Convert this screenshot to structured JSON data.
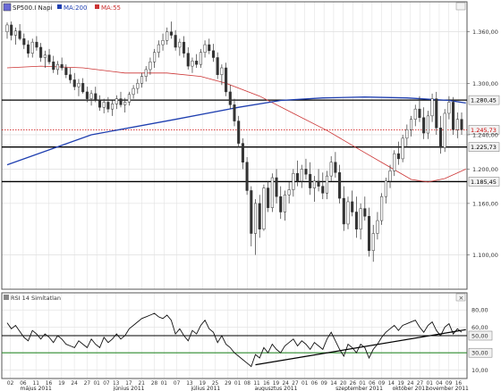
{
  "chart_data": {
    "type": "candlestick",
    "legend": [
      {
        "label": "SP500.I Napi",
        "color": "#222222"
      },
      {
        "label": "MA:200",
        "color": "#1f3fb0"
      },
      {
        "label": "MA:55",
        "color": "#cc3333"
      }
    ],
    "price_axis": {
      "min": 1060,
      "max": 1395,
      "ticks": [
        {
          "value": 1360,
          "label": "1.360,00"
        },
        {
          "value": 1300,
          "label": "1.300,00"
        },
        {
          "value": 1240,
          "label": "1.240,00"
        },
        {
          "value": 1200,
          "label": "1.200,00"
        },
        {
          "value": 1160,
          "label": "1.160,00"
        },
        {
          "value": 1100,
          "label": "1.100,00"
        }
      ]
    },
    "horizontal_levels": [
      {
        "value": 1280.45,
        "label": "1.280,45",
        "style": "solid",
        "color": "#000000"
      },
      {
        "value": 1245.73,
        "label": "1.245,73",
        "style": "dotted",
        "color": "#cc0000"
      },
      {
        "value": 1225.73,
        "label": "1.225,73",
        "style": "solid",
        "color": "#000000"
      },
      {
        "value": 1185.45,
        "label": "1.185,45",
        "style": "solid",
        "color": "#000000"
      }
    ],
    "candles": [
      [
        1360,
        1371,
        1352,
        1368
      ],
      [
        1368,
        1372,
        1350,
        1356
      ],
      [
        1356,
        1365,
        1345,
        1361
      ],
      [
        1361,
        1369,
        1350,
        1352
      ],
      [
        1352,
        1358,
        1340,
        1345
      ],
      [
        1345,
        1350,
        1330,
        1335
      ],
      [
        1335,
        1352,
        1330,
        1348
      ],
      [
        1348,
        1355,
        1338,
        1342
      ],
      [
        1342,
        1347,
        1325,
        1330
      ],
      [
        1330,
        1338,
        1318,
        1333
      ],
      [
        1333,
        1340,
        1322,
        1325
      ],
      [
        1325,
        1332,
        1312,
        1316
      ],
      [
        1316,
        1326,
        1310,
        1322
      ],
      [
        1322,
        1330,
        1315,
        1318
      ],
      [
        1318,
        1322,
        1306,
        1310
      ],
      [
        1310,
        1318,
        1300,
        1304
      ],
      [
        1304,
        1312,
        1292,
        1296
      ],
      [
        1296,
        1305,
        1285,
        1300
      ],
      [
        1300,
        1306,
        1288,
        1290
      ],
      [
        1290,
        1296,
        1278,
        1282
      ],
      [
        1282,
        1292,
        1274,
        1288
      ],
      [
        1288,
        1296,
        1278,
        1280
      ],
      [
        1280,
        1286,
        1268,
        1272
      ],
      [
        1272,
        1282,
        1265,
        1278
      ],
      [
        1278,
        1284,
        1266,
        1270
      ],
      [
        1270,
        1280,
        1262,
        1276
      ],
      [
        1276,
        1286,
        1270,
        1282
      ],
      [
        1282,
        1290,
        1272,
        1275
      ],
      [
        1275,
        1283,
        1266,
        1278
      ],
      [
        1278,
        1290,
        1274,
        1287
      ],
      [
        1287,
        1298,
        1282,
        1294
      ],
      [
        1294,
        1305,
        1288,
        1300
      ],
      [
        1300,
        1312,
        1295,
        1308
      ],
      [
        1308,
        1320,
        1302,
        1316
      ],
      [
        1316,
        1330,
        1310,
        1325
      ],
      [
        1325,
        1340,
        1318,
        1336
      ],
      [
        1336,
        1350,
        1330,
        1345
      ],
      [
        1345,
        1358,
        1338,
        1350
      ],
      [
        1350,
        1365,
        1345,
        1360
      ],
      [
        1360,
        1372,
        1352,
        1356
      ],
      [
        1356,
        1362,
        1338,
        1342
      ],
      [
        1342,
        1352,
        1332,
        1348
      ],
      [
        1348,
        1355,
        1330,
        1335
      ],
      [
        1335,
        1342,
        1316,
        1320
      ],
      [
        1320,
        1330,
        1312,
        1326
      ],
      [
        1326,
        1334,
        1318,
        1322
      ],
      [
        1322,
        1340,
        1318,
        1336
      ],
      [
        1336,
        1350,
        1330,
        1345
      ],
      [
        1345,
        1352,
        1334,
        1338
      ],
      [
        1338,
        1346,
        1325,
        1330
      ],
      [
        1330,
        1336,
        1305,
        1310
      ],
      [
        1310,
        1322,
        1298,
        1318
      ],
      [
        1318,
        1324,
        1285,
        1290
      ],
      [
        1290,
        1298,
        1270,
        1275
      ],
      [
        1275,
        1282,
        1250,
        1256
      ],
      [
        1256,
        1262,
        1225,
        1230
      ],
      [
        1230,
        1236,
        1200,
        1208
      ],
      [
        1208,
        1214,
        1170,
        1175
      ],
      [
        1175,
        1180,
        1110,
        1125
      ],
      [
        1125,
        1165,
        1100,
        1160
      ],
      [
        1160,
        1170,
        1120,
        1130
      ],
      [
        1130,
        1182,
        1128,
        1178
      ],
      [
        1178,
        1186,
        1150,
        1155
      ],
      [
        1155,
        1195,
        1150,
        1190
      ],
      [
        1190,
        1200,
        1160,
        1168
      ],
      [
        1168,
        1180,
        1142,
        1150
      ],
      [
        1150,
        1175,
        1140,
        1170
      ],
      [
        1170,
        1185,
        1160,
        1176
      ],
      [
        1176,
        1200,
        1168,
        1195
      ],
      [
        1195,
        1210,
        1180,
        1186
      ],
      [
        1186,
        1205,
        1178,
        1200
      ],
      [
        1200,
        1212,
        1188,
        1194
      ],
      [
        1194,
        1208,
        1170,
        1178
      ],
      [
        1178,
        1192,
        1162,
        1186
      ],
      [
        1186,
        1200,
        1174,
        1180
      ],
      [
        1180,
        1196,
        1165,
        1172
      ],
      [
        1172,
        1198,
        1165,
        1192
      ],
      [
        1192,
        1215,
        1186,
        1208
      ],
      [
        1208,
        1220,
        1190,
        1196
      ],
      [
        1196,
        1205,
        1160,
        1166
      ],
      [
        1166,
        1180,
        1128,
        1136
      ],
      [
        1136,
        1168,
        1130,
        1162
      ],
      [
        1162,
        1175,
        1145,
        1150
      ],
      [
        1150,
        1168,
        1120,
        1130
      ],
      [
        1130,
        1160,
        1118,
        1154
      ],
      [
        1154,
        1168,
        1140,
        1145
      ],
      [
        1145,
        1155,
        1098,
        1105
      ],
      [
        1105,
        1135,
        1092,
        1125
      ],
      [
        1125,
        1150,
        1118,
        1140
      ],
      [
        1140,
        1172,
        1135,
        1168
      ],
      [
        1168,
        1190,
        1160,
        1186
      ],
      [
        1186,
        1205,
        1178,
        1198
      ],
      [
        1198,
        1222,
        1192,
        1218
      ],
      [
        1218,
        1232,
        1205,
        1212
      ],
      [
        1212,
        1240,
        1208,
        1236
      ],
      [
        1236,
        1252,
        1226,
        1246
      ],
      [
        1246,
        1262,
        1238,
        1258
      ],
      [
        1258,
        1275,
        1250,
        1270
      ],
      [
        1270,
        1285,
        1255,
        1260
      ],
      [
        1260,
        1272,
        1235,
        1242
      ],
      [
        1242,
        1268,
        1235,
        1262
      ],
      [
        1262,
        1288,
        1255,
        1282
      ],
      [
        1282,
        1290,
        1240,
        1248
      ],
      [
        1248,
        1262,
        1218,
        1225
      ],
      [
        1225,
        1270,
        1220,
        1265
      ],
      [
        1265,
        1285,
        1258,
        1278
      ],
      [
        1278,
        1284,
        1240,
        1246
      ],
      [
        1246,
        1266,
        1236,
        1258
      ],
      [
        1258,
        1266,
        1240,
        1246
      ]
    ],
    "ma200": [
      [
        0,
        1205
      ],
      [
        20,
        1240
      ],
      [
        40,
        1258
      ],
      [
        55,
        1272
      ],
      [
        65,
        1280
      ],
      [
        75,
        1283
      ],
      [
        85,
        1284
      ],
      [
        95,
        1283
      ],
      [
        105,
        1280
      ],
      [
        109,
        1277
      ]
    ],
    "ma55": [
      [
        0,
        1318
      ],
      [
        8,
        1320
      ],
      [
        18,
        1318
      ],
      [
        28,
        1312
      ],
      [
        38,
        1312
      ],
      [
        46,
        1308
      ],
      [
        52,
        1300
      ],
      [
        60,
        1285
      ],
      [
        68,
        1265
      ],
      [
        76,
        1245
      ],
      [
        84,
        1222
      ],
      [
        90,
        1205
      ],
      [
        96,
        1188
      ],
      [
        100,
        1185
      ],
      [
        104,
        1189
      ],
      [
        109,
        1200
      ]
    ],
    "rsi": {
      "title": "RSI 14 Simítatlan",
      "min": 0,
      "max": 100,
      "ticks": [
        {
          "value": 80,
          "label": "80,00"
        },
        {
          "value": 60,
          "label": "60,00"
        },
        {
          "value": 50,
          "label": "50,00"
        },
        {
          "value": 30,
          "label": "30,00"
        },
        {
          "value": 10,
          "label": "10,00"
        }
      ],
      "levels": [
        {
          "value": 50,
          "color": "#000000"
        },
        {
          "value": 30,
          "color": "#2e8b2e"
        }
      ],
      "values": [
        65,
        58,
        62,
        55,
        48,
        44,
        56,
        52,
        46,
        52,
        48,
        42,
        50,
        46,
        40,
        38,
        36,
        44,
        40,
        36,
        46,
        40,
        36,
        48,
        42,
        46,
        52,
        46,
        50,
        58,
        62,
        66,
        70,
        72,
        74,
        76,
        72,
        70,
        74,
        68,
        52,
        58,
        50,
        44,
        56,
        52,
        62,
        68,
        58,
        54,
        42,
        50,
        40,
        36,
        30,
        26,
        22,
        18,
        14,
        28,
        24,
        36,
        30,
        40,
        34,
        30,
        38,
        42,
        46,
        38,
        44,
        40,
        34,
        42,
        38,
        34,
        46,
        54,
        44,
        34,
        26,
        40,
        36,
        30,
        40,
        36,
        24,
        34,
        40,
        48,
        54,
        58,
        62,
        56,
        62,
        64,
        66,
        68,
        60,
        54,
        62,
        66,
        56,
        50,
        60,
        64,
        52,
        58,
        54
      ],
      "trendline": [
        [
          59,
          16
        ],
        [
          109,
          57
        ]
      ]
    },
    "x_axis": {
      "day_ticks": [
        {
          "i": 1,
          "label": "02"
        },
        {
          "i": 5,
          "label": "06"
        },
        {
          "i": 9,
          "label": "11"
        },
        {
          "i": 13,
          "label": "16"
        },
        {
          "i": 17,
          "label": "19"
        },
        {
          "i": 21,
          "label": "24"
        },
        {
          "i": 25,
          "label": "27"
        },
        {
          "i": 28,
          "label": "01"
        },
        {
          "i": 31,
          "label": "07"
        },
        {
          "i": 34,
          "label": "13"
        },
        {
          "i": 38,
          "label": "17"
        },
        {
          "i": 42,
          "label": "21"
        },
        {
          "i": 46,
          "label": "28"
        },
        {
          "i": 49,
          "label": "01"
        },
        {
          "i": 53,
          "label": "07"
        },
        {
          "i": 57,
          "label": "13"
        },
        {
          "i": 61,
          "label": "19"
        },
        {
          "i": 65,
          "label": "25"
        },
        {
          "i": 69,
          "label": "29"
        },
        {
          "i": 72,
          "label": "01"
        },
        {
          "i": 75,
          "label": "08"
        },
        {
          "i": 78,
          "label": "11"
        },
        {
          "i": 81,
          "label": "16"
        },
        {
          "i": 84,
          "label": "19"
        },
        {
          "i": 87,
          "label": "24"
        },
        {
          "i": 90,
          "label": "27"
        },
        {
          "i": 93,
          "label": "01"
        },
        {
          "i": 96,
          "label": "06"
        },
        {
          "i": 99,
          "label": "09"
        },
        {
          "i": 102,
          "label": "14"
        },
        {
          "i": 105,
          "label": "20"
        },
        {
          "i": 108,
          "label": "26"
        },
        {
          "i": 111,
          "label": "01"
        },
        {
          "i": 114,
          "label": "06"
        },
        {
          "i": 117,
          "label": "09"
        },
        {
          "i": 120,
          "label": "14"
        },
        {
          "i": 123,
          "label": "19"
        },
        {
          "i": 126,
          "label": "24"
        },
        {
          "i": 129,
          "label": "27"
        },
        {
          "i": 132,
          "label": "01"
        },
        {
          "i": 135,
          "label": "04"
        },
        {
          "i": 138,
          "label": "09"
        },
        {
          "i": 141,
          "label": "16"
        }
      ],
      "month_labels": [
        {
          "i": 9,
          "label": "május 2011"
        },
        {
          "i": 38,
          "label": "június 2011"
        },
        {
          "i": 62,
          "label": "július 2011"
        },
        {
          "i": 84,
          "label": "augusztus 2011"
        },
        {
          "i": 110,
          "label": "szeptember 2011"
        },
        {
          "i": 126,
          "label": "október 2011"
        },
        {
          "i": 138,
          "label": "november 2011"
        }
      ]
    }
  }
}
